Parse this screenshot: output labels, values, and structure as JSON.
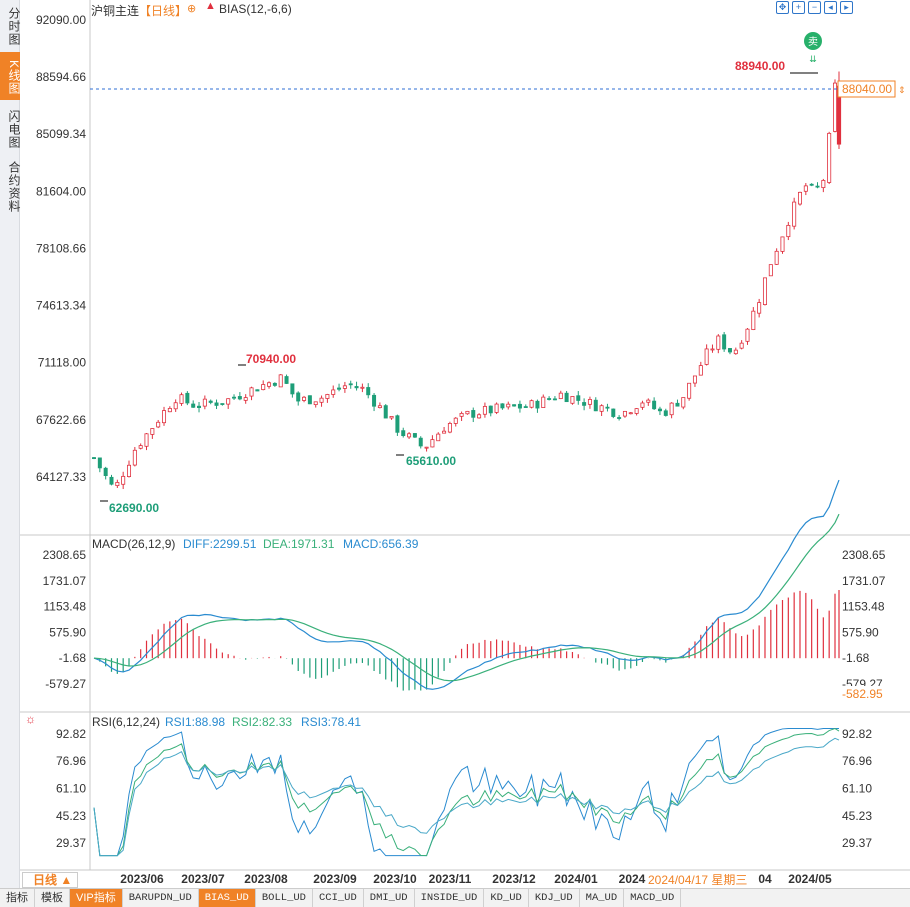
{
  "left_tabs": [
    {
      "label": "分时图",
      "active": false
    },
    {
      "label": "K线图",
      "active": true
    },
    {
      "label": "闪电图",
      "active": false
    },
    {
      "label": "合约资料",
      "active": false
    }
  ],
  "header": {
    "symbol": "沪铜主连",
    "period_tag": "【日线】",
    "indicator": "BIAS(12,-6,6)"
  },
  "main": {
    "y_ticks": [
      "92090.00",
      "88594.66",
      "85099.34",
      "81604.00",
      "78108.66",
      "74613.34",
      "71118.00",
      "67622.66",
      "64127.33"
    ],
    "annotations": {
      "high": "88940.00",
      "local_high": "70940.00",
      "local_low": "65610.00",
      "low": "62690.00",
      "current": "88040.00"
    },
    "sell_badge": "卖",
    "colors": {
      "up": "#e0303e",
      "down": "#1e9e78",
      "dashed": "#2f6fd6"
    }
  },
  "macd": {
    "title": "MACD(26,12,9)",
    "diff": "DIFF:2299.51",
    "dea": "DEA:1971.31",
    "macd": "MACD:656.39",
    "ticks_left": [
      "2308.65",
      "1731.07",
      "1153.48",
      "575.90",
      "-1.68",
      "-579.27"
    ],
    "ticks_right": [
      "2308.65",
      "1731.07",
      "1153.48",
      "575.90",
      "-1.68",
      "-579.27"
    ],
    "marker": "-582.95"
  },
  "rsi": {
    "title": "RSI(6,12,24)",
    "rsi1": "RSI1:88.98",
    "rsi2": "RSI2:82.33",
    "rsi3": "RSI3:78.41",
    "ticks": [
      "92.82",
      "76.96",
      "61.10",
      "45.23",
      "29.37"
    ]
  },
  "x_axis": {
    "labels": [
      "2023/06",
      "2023/07",
      "2023/08",
      "2023/09",
      "2023/10",
      "2023/11",
      "2023/12",
      "2024/01",
      "2024",
      "04",
      "2024/05"
    ],
    "cursor_date": "2024/04/17 星期三"
  },
  "period_button": "日线 ▲",
  "bottom_tabs": [
    {
      "label": "指标",
      "orange": false,
      "cn": true
    },
    {
      "label": "模板",
      "orange": false,
      "cn": true
    },
    {
      "label": "VIP指标",
      "orange": true,
      "cn": true
    },
    {
      "label": "BARUPDN_UD",
      "orange": false
    },
    {
      "label": "BIAS_UD",
      "orange": true
    },
    {
      "label": "BOLL_UD",
      "orange": false
    },
    {
      "label": "CCI_UD",
      "orange": false
    },
    {
      "label": "DMI_UD",
      "orange": false
    },
    {
      "label": "INSIDE_UD",
      "orange": false
    },
    {
      "label": "KD_UD",
      "orange": false
    },
    {
      "label": "KDJ_UD",
      "orange": false
    },
    {
      "label": "MA_UD",
      "orange": false
    },
    {
      "label": "MACD_UD",
      "orange": false
    }
  ]
}
